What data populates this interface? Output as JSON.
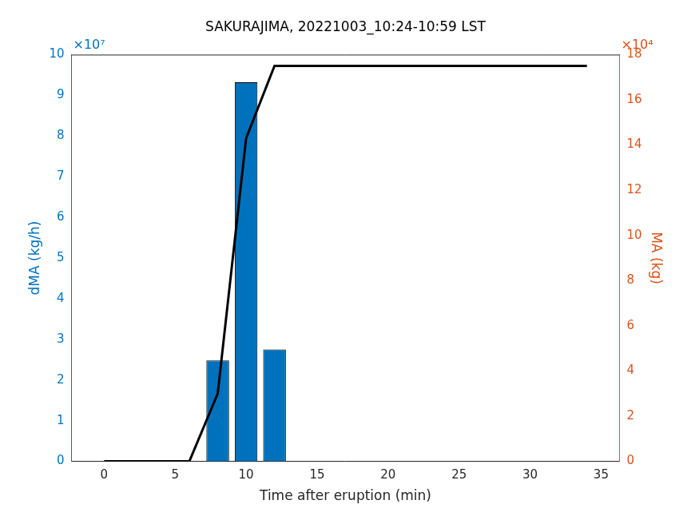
{
  "chart_data": {
    "type": "bar",
    "title": "SAKURAJIMA, 20221003_10:24-10:59 LST",
    "x_label": "Time after eruption (min)",
    "y_label": "dMA (kg/h)",
    "y2_label": "MA (kg)",
    "annotations": [
      {
        "text": "×10⁷",
        "axis": "y"
      },
      {
        "text": "×10⁴",
        "axis": "y2"
      }
    ],
    "xlim": [
      -2.3,
      36.3
    ],
    "xticks": [
      0,
      5,
      10,
      15,
      20,
      25,
      30,
      35
    ],
    "ylim": [
      0,
      10
    ],
    "yticks": [
      0,
      1,
      2,
      3,
      4,
      5,
      6,
      7,
      8,
      9,
      10
    ],
    "y2lim": [
      0,
      18
    ],
    "y2ticks": [
      0,
      2,
      4,
      6,
      8,
      10,
      12,
      14,
      16,
      18
    ],
    "grid": false,
    "series": [
      {
        "type": "bar",
        "color": "#0072bd",
        "x": [
          8,
          10,
          12
        ],
        "values": [
          2.48,
          9.32,
          2.75
        ]
      },
      {
        "type": "line",
        "color": "#000000",
        "axis": "y2",
        "x": [
          0,
          2,
          4,
          6,
          8,
          10,
          12,
          14,
          16,
          18,
          20,
          22,
          24,
          26,
          28,
          30,
          32,
          34
        ],
        "values": [
          0,
          0,
          0,
          0,
          3.0,
          14.3,
          17.5,
          17.5,
          17.5,
          17.5,
          17.5,
          17.5,
          17.5,
          17.5,
          17.5,
          17.5,
          17.5,
          17.5
        ]
      }
    ]
  }
}
